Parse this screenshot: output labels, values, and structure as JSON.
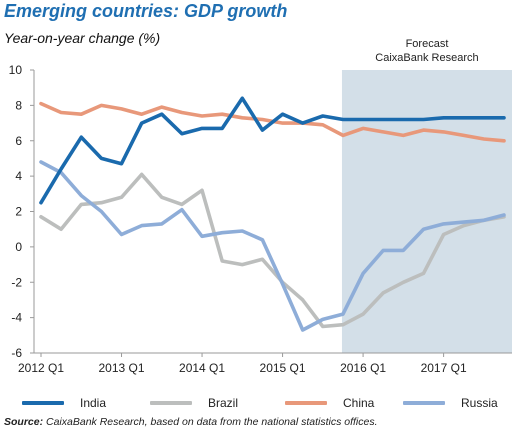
{
  "title": "Emerging countries: GDP growth",
  "subtitle": "Year-on-year change (%)",
  "forecast_label_1": "Forecast",
  "forecast_label_2": "CaixaBank Research",
  "source_label": "Source:",
  "source_text": " CaixaBank Research, based on data from the national statistics offices.",
  "chart_data": {
    "type": "line",
    "ylim": [
      -6,
      10
    ],
    "yticks": [
      10,
      8,
      6,
      4,
      2,
      0,
      -2,
      -4,
      -6
    ],
    "xticks": [
      "2012 Q1",
      "2013 Q1",
      "2014 Q1",
      "2015 Q1",
      "2016 Q1",
      "2017 Q1"
    ],
    "forecast_start": "2015 Q4",
    "x": [
      "2012 Q1",
      "2012 Q2",
      "2012 Q3",
      "2012 Q4",
      "2013 Q1",
      "2013 Q2",
      "2013 Q3",
      "2013 Q4",
      "2014 Q1",
      "2014 Q2",
      "2014 Q3",
      "2014 Q4",
      "2015 Q1",
      "2015 Q2",
      "2015 Q3",
      "2015 Q4",
      "2016 Q1",
      "2016 Q2",
      "2016 Q3",
      "2016 Q4",
      "2017 Q1",
      "2017 Q2",
      "2017 Q3",
      "2017 Q4"
    ],
    "series": [
      {
        "name": "India",
        "color": "#1a6aad",
        "values": [
          2.5,
          4.4,
          6.2,
          5.0,
          4.7,
          7.0,
          7.5,
          6.4,
          6.7,
          6.7,
          8.4,
          6.6,
          7.5,
          7.0,
          7.4,
          7.2,
          7.2,
          7.2,
          7.2,
          7.2,
          7.3,
          7.3,
          7.3,
          7.3
        ]
      },
      {
        "name": "Brazil",
        "color": "#bcbebd",
        "values": [
          1.7,
          1.0,
          2.4,
          2.5,
          2.8,
          4.1,
          2.8,
          2.4,
          3.2,
          -0.8,
          -1.0,
          -0.7,
          -2.0,
          -3.0,
          -4.5,
          -4.4,
          -3.8,
          -2.6,
          -2.0,
          -1.5,
          0.7,
          1.2,
          1.5,
          1.7
        ]
      },
      {
        "name": "China",
        "color": "#e8987a",
        "values": [
          8.1,
          7.6,
          7.5,
          8.0,
          7.8,
          7.5,
          7.9,
          7.6,
          7.4,
          7.5,
          7.3,
          7.2,
          7.0,
          7.0,
          6.9,
          6.3,
          6.7,
          6.5,
          6.3,
          6.6,
          6.5,
          6.3,
          6.1,
          6.0
        ]
      },
      {
        "name": "Russia",
        "color": "#8eadd8",
        "values": [
          4.8,
          4.2,
          2.9,
          2.0,
          0.7,
          1.2,
          1.3,
          2.1,
          0.6,
          0.8,
          0.9,
          0.4,
          -2.1,
          -4.7,
          -4.1,
          -3.8,
          -1.5,
          -0.2,
          -0.2,
          1.0,
          1.3,
          1.4,
          1.5,
          1.8
        ]
      }
    ]
  }
}
